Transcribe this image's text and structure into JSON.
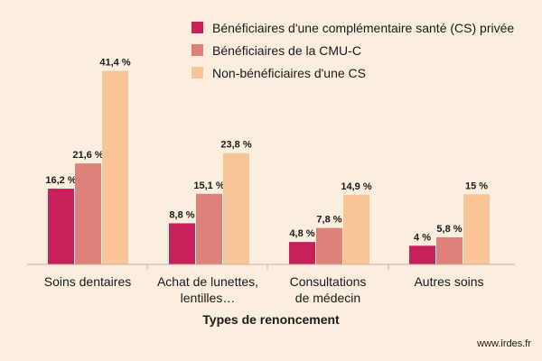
{
  "chart_data": {
    "type": "bar",
    "categories": [
      "Soins dentaires",
      "Achat de lunettes, lentilles…",
      "Consultations de médecin",
      "Autres soins"
    ],
    "category_lines": [
      [
        "Soins dentaires"
      ],
      [
        "Achat de lunettes,",
        "lentilles…"
      ],
      [
        "Consultations",
        "de médecin"
      ],
      [
        "Autres soins"
      ]
    ],
    "series": [
      {
        "name": "Bénéficiaires d'une complémentaire santé (CS) privée",
        "color": "#c8205a",
        "values": [
          16.2,
          8.8,
          4.8,
          4.0
        ],
        "labels": [
          "16,2 %",
          "8,8 %",
          "4,8 %",
          "4 %"
        ]
      },
      {
        "name": "Bénéficiaires de la CMU-C",
        "color": "#e0807a",
        "values": [
          21.6,
          15.1,
          7.8,
          5.8
        ],
        "labels": [
          "21,6 %",
          "15,1 %",
          "7,8 %",
          "5,8 %"
        ]
      },
      {
        "name": "Non-bénéficiaires d'une CS",
        "color": "#f8c498",
        "values": [
          41.4,
          23.8,
          14.9,
          15.0
        ],
        "labels": [
          "41,4 %",
          "23,8 %",
          "14,9 %",
          "15 %"
        ]
      }
    ],
    "xlabel": "Types de renoncement",
    "ylabel": "",
    "ylim": [
      0,
      45
    ],
    "legend_position": "top-right",
    "grid": false
  },
  "source": "www.irdes.fr"
}
